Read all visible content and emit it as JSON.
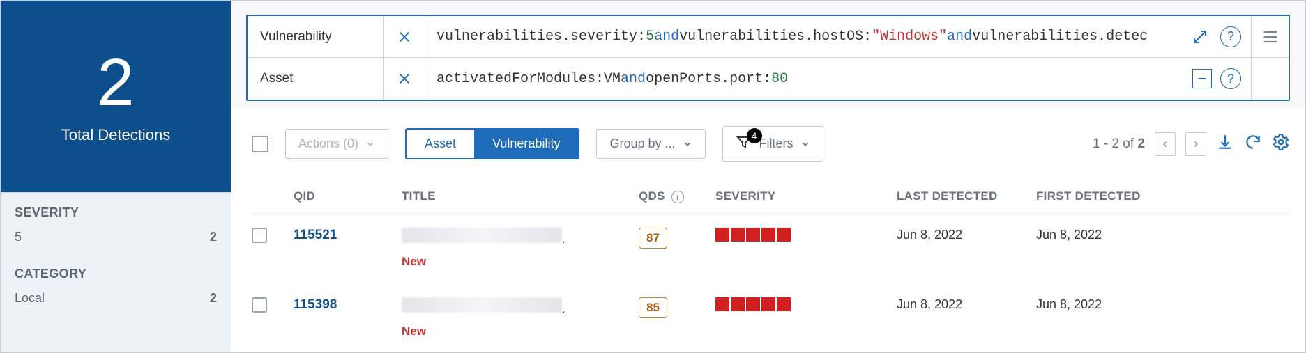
{
  "sidebar": {
    "total": "2",
    "total_label": "Total Detections",
    "facets": {
      "severity_header": "SEVERITY",
      "severity_item": "5",
      "severity_count": "2",
      "category_header": "CATEGORY",
      "category_item": "Local",
      "category_count": "2"
    }
  },
  "search": {
    "rows": [
      {
        "label": "Vulnerability",
        "query_html": "vulnerabilities.severity:<span class='num'>5</span> <span class='kw'>and</span> vulnerabilities.hostOS:<span class='str'>\"Windows\"</span> <span class='kw'>and</span> vulnerabilities.detec",
        "actions": [
          "expand",
          "help"
        ]
      },
      {
        "label": "Asset",
        "query_html": "activatedForModules:VM <span class='kw'>and</span> openPorts.port:<span class='num'>80</span>",
        "actions": [
          "collapse",
          "help"
        ]
      }
    ]
  },
  "toolbar": {
    "actions_label": "Actions (0)",
    "seg_asset": "Asset",
    "seg_vuln": "Vulnerability",
    "seg_active": "Vulnerability",
    "groupby_label": "Group by ...",
    "filters_label": "Filters",
    "filters_badge": "4",
    "range_text_prefix": "1 - 2 of ",
    "range_total": "2"
  },
  "table": {
    "columns": {
      "qid": "QID",
      "title": "TITLE",
      "qds": "QDS",
      "severity": "SEVERITY",
      "last": "LAST DETECTED",
      "first": "FIRST DETECTED"
    },
    "rows": [
      {
        "qid": "115521",
        "status": "New",
        "qds": "87",
        "severity": 5,
        "last": "Jun 8, 2022",
        "first": "Jun 8, 2022"
      },
      {
        "qid": "115398",
        "status": "New",
        "qds": "85",
        "severity": 5,
        "last": "Jun 8, 2022",
        "first": "Jun 8, 2022"
      }
    ]
  },
  "colors": {
    "brand_blue": "#0d4f8c",
    "accent_blue": "#1e6bb8",
    "danger": "#c23030",
    "severity_block": "#d12020",
    "qds_border": "#c77b2d",
    "bg": "#f7f9fa"
  }
}
